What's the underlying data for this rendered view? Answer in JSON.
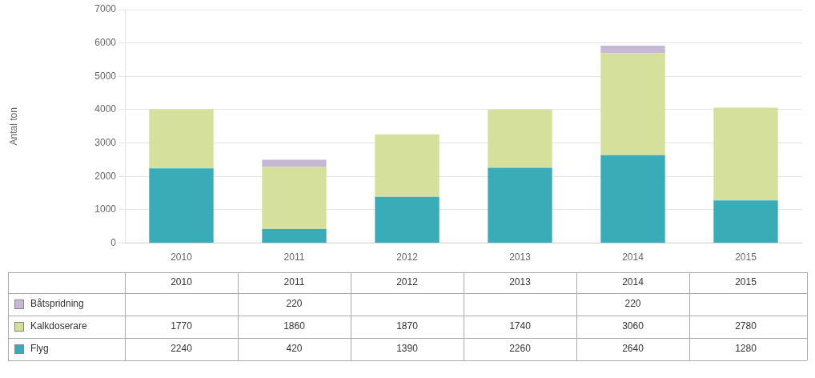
{
  "chart_data": {
    "type": "bar",
    "stacked": true,
    "grid": true,
    "legend": "bottom",
    "data_labels": true,
    "categories": [
      "2010",
      "2011",
      "2012",
      "2013",
      "2014",
      "2015"
    ],
    "ylabel": "Antal ton",
    "ylim": [
      0,
      7000
    ],
    "yticks": [
      0,
      1000,
      2000,
      3000,
      4000,
      5000,
      6000,
      7000
    ],
    "series": [
      {
        "name": "Flyg",
        "color": "#3aacb8",
        "values": [
          2240,
          420,
          1390,
          2260,
          2640,
          1280
        ]
      },
      {
        "name": "Kalkdoserare",
        "color": "#d4e09b",
        "values": [
          1770,
          1860,
          1870,
          1740,
          3060,
          2780
        ]
      },
      {
        "name": "Båtspridning",
        "color": "#c6b8d4",
        "values": [
          0,
          220,
          0,
          0,
          220,
          0
        ],
        "value_labels": [
          null,
          "220",
          null,
          null,
          "220",
          null
        ]
      }
    ]
  }
}
